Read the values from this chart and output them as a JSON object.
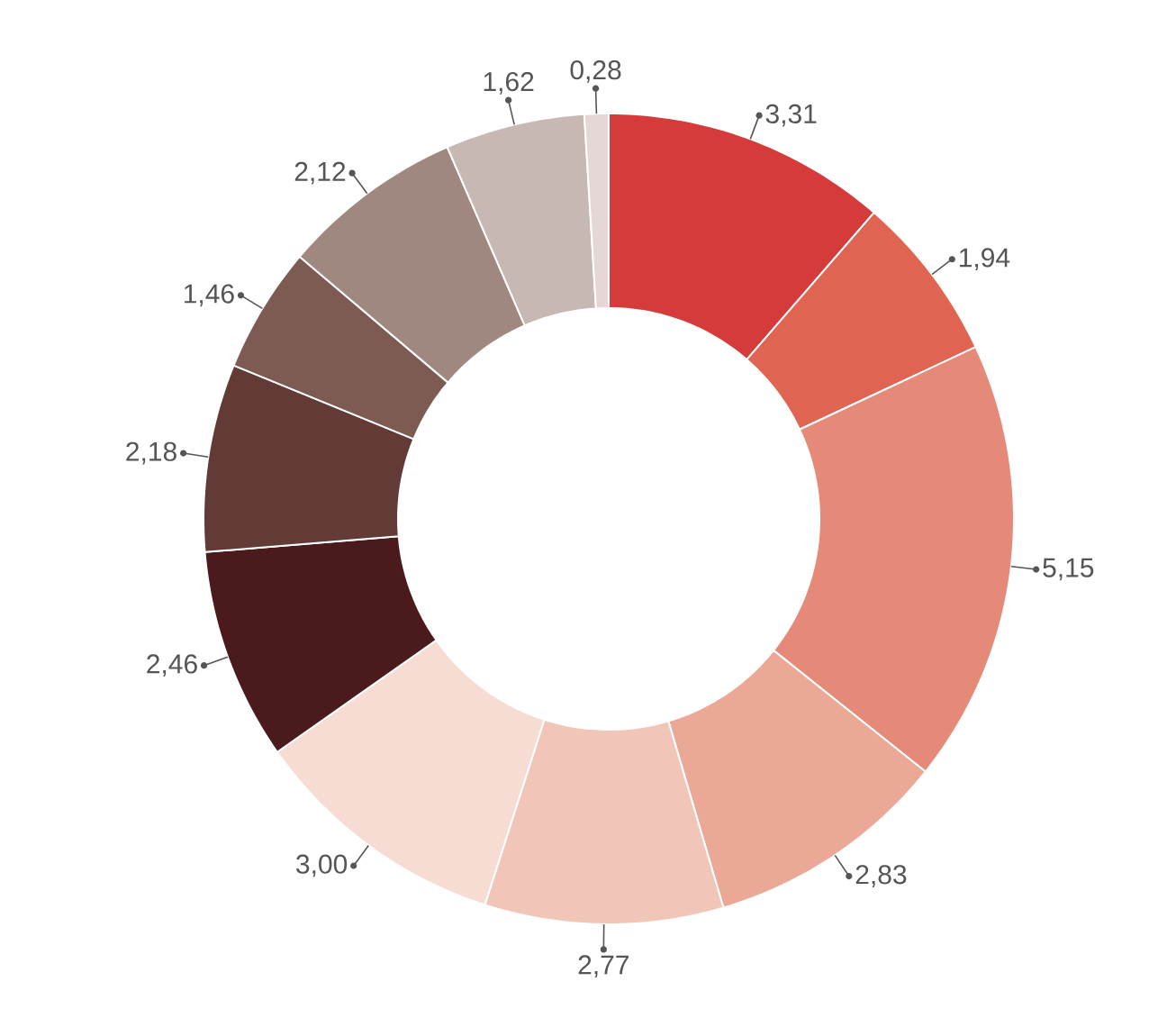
{
  "chart_data": {
    "type": "donut",
    "categories": [
      null,
      null,
      null,
      null,
      null,
      null,
      null,
      null,
      null,
      null,
      null,
      null
    ],
    "values": [
      3.31,
      1.94,
      5.15,
      2.83,
      2.77,
      3.0,
      2.46,
      2.18,
      1.46,
      2.12,
      1.62,
      0.28
    ],
    "value_labels": [
      "3,31",
      "1,94",
      "5,15",
      "2,83",
      "2,77",
      "3,00",
      "2,46",
      "2,18",
      "1,46",
      "2,12",
      "1,62",
      "0,28"
    ],
    "colors": [
      "#d63b3b",
      "#e06452",
      "#e58a78",
      "#eba896",
      "#f1c5b8",
      "#f7dcd4",
      "#4a1a1c",
      "#623a36",
      "#7d5a52",
      "#a08780",
      "#c8b8b4",
      "#e5d7d5"
    ]
  }
}
